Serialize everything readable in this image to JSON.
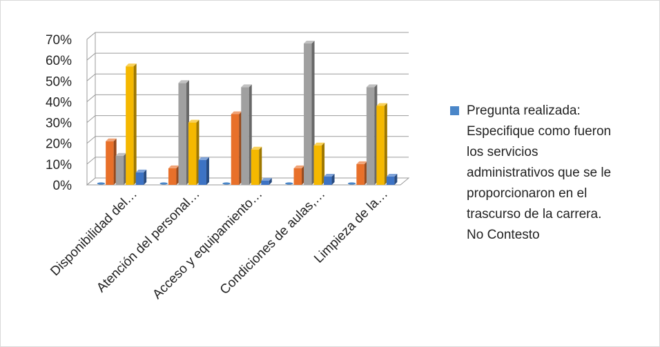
{
  "chart_data": {
    "type": "bar",
    "categories": [
      "Disponibilidad del…",
      "Atención del personal…",
      "Acceso y equipamiento…",
      "Condiciones de aulas,…",
      "Limpieza de la…"
    ],
    "series": [
      {
        "color": "#4a86c8",
        "values": [
          0,
          0,
          0,
          0,
          0
        ]
      },
      {
        "color": "#e8702a",
        "values": [
          21,
          8,
          34,
          8,
          10
        ]
      },
      {
        "color": "#a0a0a0",
        "values": [
          14,
          49,
          47,
          68,
          47
        ]
      },
      {
        "color": "#f5b800",
        "values": [
          57,
          30,
          17,
          19,
          38
        ]
      },
      {
        "color": "#3d73c4",
        "values": [
          6,
          12,
          2,
          4,
          4
        ]
      }
    ],
    "y_ticks": [
      "0%",
      "10%",
      "20%",
      "30%",
      "40%",
      "50%",
      "60%",
      "70%"
    ],
    "ylim": [
      0,
      70
    ],
    "legend": {
      "position": "right",
      "text": "Pregunta realizada: Especifique como fueron los servicios administrativos que se le proporcionaron en el trascurso de la carrera. No Contesto",
      "lines": [
        "Pregunta realizada:",
        "Especifique como fueron",
        "los servicios",
        "administrativos que se le",
        "proporcionaron en el",
        "trascurso de la carrera.",
        "No Contesto"
      ]
    }
  }
}
